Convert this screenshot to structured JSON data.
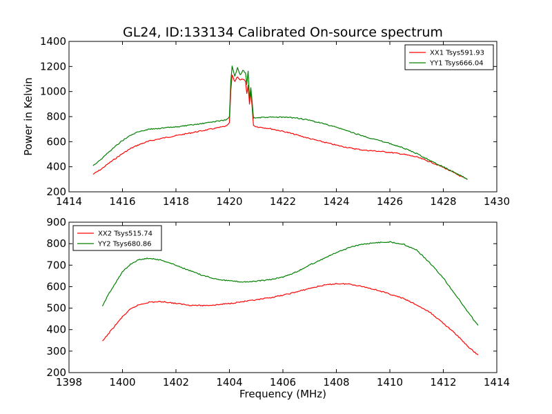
{
  "figure": {
    "title": "GL24, ID:133134 Calibrated On-source spectrum"
  },
  "chart_data": [
    {
      "type": "line",
      "title": "GL24, ID:133134 Calibrated On-source spectrum",
      "xlabel": "",
      "ylabel": "Power in Kelvin",
      "xlim": [
        1414,
        1430
      ],
      "ylim": [
        200,
        1400
      ],
      "xticks": [
        1414,
        1416,
        1418,
        1420,
        1422,
        1424,
        1426,
        1428,
        1430
      ],
      "yticks": [
        200,
        400,
        600,
        800,
        1000,
        1200,
        1400
      ],
      "xtick_labels": [
        "1414",
        "1416",
        "1418",
        "1420",
        "1422",
        "1424",
        "1426",
        "1428",
        "1430"
      ],
      "ytick_labels": [
        "200",
        "400",
        "600",
        "800",
        "1000",
        "1200",
        "1400"
      ],
      "grid": false,
      "legend_position": "top-right",
      "series": [
        {
          "name": "XX1 Tsys591.93",
          "color": "#ff0000",
          "x": [
            1414.9,
            1415.2,
            1415.5,
            1415.8,
            1416.0,
            1416.3,
            1416.6,
            1417.0,
            1417.5,
            1418.0,
            1418.5,
            1419.0,
            1419.5,
            1419.9,
            1420.0,
            1420.05,
            1420.1,
            1420.2,
            1420.3,
            1420.4,
            1420.5,
            1420.6,
            1420.65,
            1420.7,
            1420.75,
            1420.8,
            1420.85,
            1420.9,
            1421.0,
            1421.5,
            1422.0,
            1422.5,
            1423.0,
            1423.5,
            1424.0,
            1424.5,
            1425.0,
            1425.5,
            1426.0,
            1426.5,
            1427.0,
            1427.5,
            1428.0,
            1428.5,
            1428.9
          ],
          "y": [
            340,
            380,
            430,
            475,
            505,
            545,
            575,
            605,
            628,
            648,
            668,
            688,
            708,
            725,
            750,
            1000,
            1130,
            1080,
            1120,
            1090,
            1100,
            1080,
            980,
            1050,
            900,
            1000,
            870,
            730,
            720,
            705,
            683,
            655,
            625,
            598,
            572,
            550,
            533,
            525,
            515,
            500,
            478,
            440,
            395,
            340,
            298
          ]
        },
        {
          "name": "YY1 Tsys666.04",
          "color": "#008000",
          "x": [
            1414.9,
            1415.2,
            1415.5,
            1415.8,
            1416.0,
            1416.3,
            1416.6,
            1417.0,
            1417.5,
            1418.0,
            1418.5,
            1419.0,
            1419.5,
            1419.9,
            1420.0,
            1420.05,
            1420.1,
            1420.2,
            1420.3,
            1420.4,
            1420.5,
            1420.6,
            1420.65,
            1420.7,
            1420.75,
            1420.8,
            1420.85,
            1420.9,
            1421.0,
            1421.5,
            1422.0,
            1422.5,
            1423.0,
            1423.5,
            1424.0,
            1424.5,
            1425.0,
            1425.5,
            1426.0,
            1426.5,
            1427.0,
            1427.5,
            1428.0,
            1428.5,
            1428.9
          ],
          "y": [
            410,
            460,
            520,
            575,
            610,
            650,
            680,
            700,
            708,
            718,
            730,
            745,
            762,
            775,
            800,
            1080,
            1200,
            1120,
            1190,
            1130,
            1170,
            1150,
            1060,
            1160,
            950,
            1030,
            920,
            790,
            790,
            795,
            795,
            790,
            770,
            745,
            715,
            680,
            645,
            615,
            585,
            550,
            505,
            450,
            400,
            345,
            300
          ]
        }
      ]
    },
    {
      "type": "line",
      "title": "",
      "xlabel": "Frequency (MHz)",
      "ylabel": "",
      "xlim": [
        1398,
        1414
      ],
      "ylim": [
        200,
        900
      ],
      "xticks": [
        1398,
        1400,
        1402,
        1404,
        1406,
        1408,
        1410,
        1412,
        1414
      ],
      "yticks": [
        200,
        300,
        400,
        500,
        600,
        700,
        800,
        900
      ],
      "xtick_labels": [
        "1398",
        "1400",
        "1402",
        "1404",
        "1406",
        "1408",
        "1410",
        "1412",
        "1414"
      ],
      "ytick_labels": [
        "200",
        "300",
        "400",
        "500",
        "600",
        "700",
        "800",
        "900"
      ],
      "grid": false,
      "legend_position": "top-left",
      "series": [
        {
          "name": "XX2 Tsys515.74",
          "color": "#ff0000",
          "x": [
            1399.25,
            1399.5,
            1399.8,
            1400.0,
            1400.3,
            1400.6,
            1401.0,
            1401.5,
            1402.0,
            1402.5,
            1403.0,
            1403.5,
            1404.0,
            1404.5,
            1405.0,
            1405.5,
            1406.0,
            1406.5,
            1407.0,
            1407.5,
            1408.0,
            1408.5,
            1409.0,
            1409.5,
            1410.0,
            1410.5,
            1411.0,
            1411.5,
            1412.0,
            1412.5,
            1413.0,
            1413.3
          ],
          "y": [
            345,
            385,
            430,
            460,
            495,
            515,
            528,
            530,
            522,
            514,
            512,
            515,
            522,
            530,
            538,
            548,
            560,
            575,
            592,
            606,
            614,
            612,
            600,
            585,
            565,
            545,
            515,
            480,
            430,
            375,
            312,
            282
          ]
        },
        {
          "name": "YY2 Tsys680.86",
          "color": "#008000",
          "x": [
            1399.25,
            1399.5,
            1399.8,
            1400.0,
            1400.3,
            1400.6,
            1401.0,
            1401.5,
            1402.0,
            1402.5,
            1403.0,
            1403.5,
            1404.0,
            1404.5,
            1405.0,
            1405.5,
            1406.0,
            1406.5,
            1407.0,
            1407.5,
            1408.0,
            1408.5,
            1409.0,
            1409.5,
            1410.0,
            1410.5,
            1411.0,
            1411.5,
            1412.0,
            1412.5,
            1413.0,
            1413.3
          ],
          "y": [
            508,
            570,
            630,
            668,
            705,
            725,
            733,
            722,
            700,
            675,
            652,
            636,
            627,
            622,
            625,
            632,
            645,
            668,
            700,
            730,
            758,
            782,
            798,
            805,
            808,
            798,
            770,
            710,
            640,
            555,
            468,
            420
          ]
        }
      ]
    }
  ]
}
